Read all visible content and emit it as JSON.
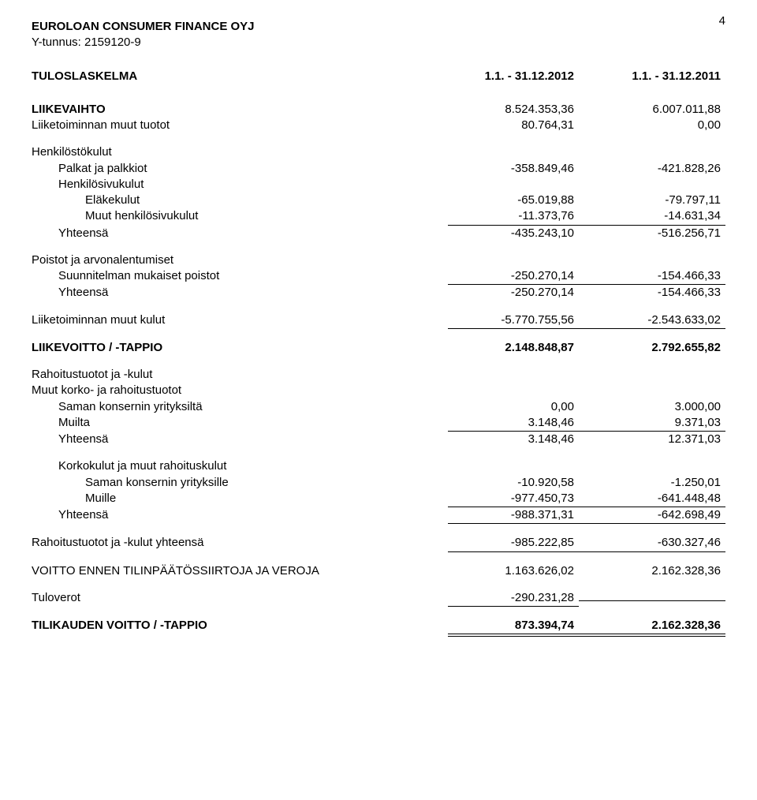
{
  "page_number": "4",
  "company": {
    "name": "EUROLOAN CONSUMER FINANCE OYJ",
    "reg_line": "Y-tunnus: 2159120-9"
  },
  "statement_title": "TULOSLASKELMA",
  "period1": "1.1. - 31.12.2012",
  "period2": "1.1. - 31.12.2011",
  "rows": {
    "liikevaihto": {
      "label": "LIIKEVAIHTO",
      "v1": "8.524.353,36",
      "v2": "6.007.011,88"
    },
    "muut_tuotot": {
      "label": "Liiketoiminnan muut tuotot",
      "v1": "80.764,31",
      "v2": "0,00"
    },
    "henkilostokulut": {
      "label": "Henkilöstökulut"
    },
    "palkat": {
      "label": "Palkat ja palkkiot",
      "v1": "-358.849,46",
      "v2": "-421.828,26"
    },
    "henkilosivukulut": {
      "label": "Henkilösivukulut"
    },
    "elakekulut": {
      "label": "Eläkekulut",
      "v1": "-65.019,88",
      "v2": "-79.797,11"
    },
    "muut_sivukulut": {
      "label": "Muut henkilösivukulut",
      "v1": "-11.373,76",
      "v2": "-14.631,34"
    },
    "henk_yht": {
      "label": "Yhteensä",
      "v1": "-435.243,10",
      "v2": "-516.256,71"
    },
    "poistot_h": {
      "label": "Poistot ja arvonalentumiset"
    },
    "suunnitelma": {
      "label": "Suunnitelman mukaiset poistot",
      "v1": "-250.270,14",
      "v2": "-154.466,33"
    },
    "poistot_yht": {
      "label": "Yhteensä",
      "v1": "-250.270,14",
      "v2": "-154.466,33"
    },
    "muut_kulut": {
      "label": "Liiketoiminnan muut kulut",
      "v1": "-5.770.755,56",
      "v2": "-2.543.633,02"
    },
    "liikevoitto": {
      "label": "LIIKEVOITTO / -TAPPIO",
      "v1": "2.148.848,87",
      "v2": "2.792.655,82"
    },
    "rahtuotot_h": {
      "label": "Rahoitustuotot ja -kulut"
    },
    "muukork_h": {
      "label": "Muut korko- ja rahoitustuotot"
    },
    "saman": {
      "label": "Saman konsernin yrityksiltä",
      "v1": "0,00",
      "v2": "3.000,00"
    },
    "muilta": {
      "label": "Muilta",
      "v1": "3.148,46",
      "v2": "9.371,03"
    },
    "rahtuotot_yht": {
      "label": "Yhteensä",
      "v1": "3.148,46",
      "v2": "12.371,03"
    },
    "korkokulut_h": {
      "label": "Korkokulut ja muut rahoituskulut"
    },
    "saman_yr": {
      "label": "Saman konsernin yrityksille",
      "v1": "-10.920,58",
      "v2": "-1.250,01"
    },
    "muille": {
      "label": "Muille",
      "v1": "-977.450,73",
      "v2": "-641.448,48"
    },
    "korkokulut_yht": {
      "label": "Yhteensä",
      "v1": "-988.371,31",
      "v2": "-642.698,49"
    },
    "rah_yht": {
      "label": "Rahoitustuotot ja -kulut yhteensä",
      "v1": "-985.222,85",
      "v2": "-630.327,46"
    },
    "voitto_ennen": {
      "label": "VOITTO ENNEN TILINPÄÄTÖSSIIRTOJA JA VEROJA",
      "v1": "1.163.626,02",
      "v2": "2.162.328,36"
    },
    "tuloverot": {
      "label": "Tuloverot",
      "v1": "-290.231,28"
    },
    "tilikauden": {
      "label": "TILIKAUDEN VOITTO / -TAPPIO",
      "v1": "873.394,74",
      "v2": "2.162.328,36"
    }
  }
}
